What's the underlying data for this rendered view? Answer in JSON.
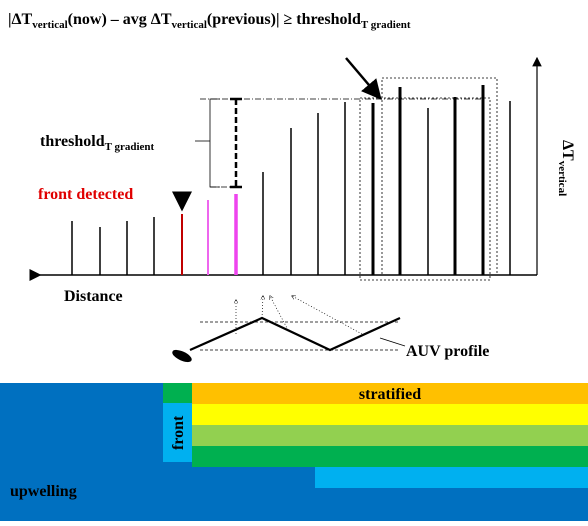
{
  "formula": {
    "part1": "|ΔT",
    "sub1": "vertical",
    "part2": "(now) – avg ΔT",
    "sub2": "vertical",
    "part3": "(previous)|  ≥  threshold",
    "sub3": "T gradient"
  },
  "threshold_label": {
    "main": "threshold",
    "sub": "T gradient"
  },
  "front_detected": "front detected",
  "distance": "Distance",
  "delta_t_axis": {
    "main": "ΔT",
    "sub": "vertical"
  },
  "auv_profile": "AUV profile",
  "layers": {
    "stratified": "stratified",
    "front": "front",
    "upwelling": "upwelling"
  }
}
